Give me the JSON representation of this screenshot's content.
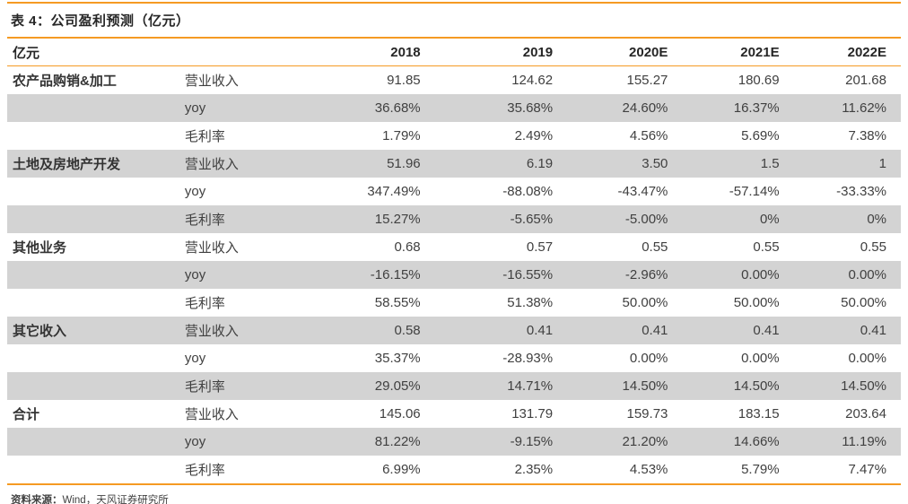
{
  "title": "表 4：公司盈利预测（亿元）",
  "footer": {
    "label": "资料来源：",
    "text": "Wind，天风证券研究所"
  },
  "colors": {
    "accent_orange": "#F59A23",
    "stripe_gray": "#d3d3d3"
  },
  "table": {
    "header": [
      "亿元",
      "",
      "2018",
      "2019",
      "2020E",
      "2021E",
      "2022E"
    ],
    "rows": [
      {
        "group": "农产品购销&加工",
        "metric": "营业收入",
        "values": [
          "91.85",
          "124.62",
          "155.27",
          "180.69",
          "201.68"
        ]
      },
      {
        "group": "",
        "metric": "yoy",
        "values": [
          "36.68%",
          "35.68%",
          "24.60%",
          "16.37%",
          "11.62%"
        ]
      },
      {
        "group": "",
        "metric": "毛利率",
        "values": [
          "1.79%",
          "2.49%",
          "4.56%",
          "5.69%",
          "7.38%"
        ]
      },
      {
        "group": "土地及房地产开发",
        "metric": "营业收入",
        "values": [
          "51.96",
          "6.19",
          "3.50",
          "1.5",
          "1"
        ]
      },
      {
        "group": "",
        "metric": "yoy",
        "values": [
          "347.49%",
          "-88.08%",
          "-43.47%",
          "-57.14%",
          "-33.33%"
        ]
      },
      {
        "group": "",
        "metric": "毛利率",
        "values": [
          "15.27%",
          "-5.65%",
          "-5.00%",
          "0%",
          "0%"
        ]
      },
      {
        "group": "其他业务",
        "metric": "营业收入",
        "values": [
          "0.68",
          "0.57",
          "0.55",
          "0.55",
          "0.55"
        ]
      },
      {
        "group": "",
        "metric": "yoy",
        "values": [
          "-16.15%",
          "-16.55%",
          "-2.96%",
          "0.00%",
          "0.00%"
        ]
      },
      {
        "group": "",
        "metric": "毛利率",
        "values": [
          "58.55%",
          "51.38%",
          "50.00%",
          "50.00%",
          "50.00%"
        ]
      },
      {
        "group": "其它收入",
        "metric": "营业收入",
        "values": [
          "0.58",
          "0.41",
          "0.41",
          "0.41",
          "0.41"
        ]
      },
      {
        "group": "",
        "metric": "yoy",
        "values": [
          "35.37%",
          "-28.93%",
          "0.00%",
          "0.00%",
          "0.00%"
        ]
      },
      {
        "group": "",
        "metric": "毛利率",
        "values": [
          "29.05%",
          "14.71%",
          "14.50%",
          "14.50%",
          "14.50%"
        ]
      },
      {
        "group": "合计",
        "metric": "营业收入",
        "values": [
          "145.06",
          "131.79",
          "159.73",
          "183.15",
          "203.64"
        ]
      },
      {
        "group": "",
        "metric": "yoy",
        "values": [
          "81.22%",
          "-9.15%",
          "21.20%",
          "14.66%",
          "11.19%"
        ]
      },
      {
        "group": "",
        "metric": "毛利率",
        "values": [
          "6.99%",
          "2.35%",
          "4.53%",
          "5.79%",
          "7.47%"
        ]
      }
    ]
  }
}
